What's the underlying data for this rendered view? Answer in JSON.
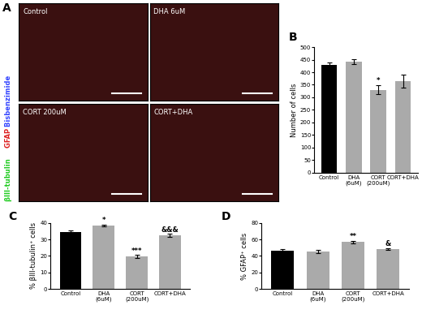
{
  "figure_a": {
    "label": "A",
    "panels": [
      "Control",
      "DHA 6uM",
      "CORT 200uM",
      "CORT+DHA"
    ],
    "stain_labels": [
      "βIII-tubulin",
      "GFAP",
      "Bisbenzimide"
    ]
  },
  "chart_data": [
    {
      "type": "bar",
      "panel": "B",
      "y_label": "Number of cells",
      "categories": [
        "Control",
        "DHA\n(6uM)",
        "CORT\n(200uM)",
        "CORT+DHA"
      ],
      "values": [
        428,
        443,
        330,
        365
      ],
      "errors": [
        10,
        10,
        18,
        25
      ],
      "annotations": [
        null,
        null,
        "*",
        null
      ],
      "colors": [
        "#000000",
        "#aaaaaa",
        "#aaaaaa",
        "#aaaaaa"
      ],
      "ylim": [
        0,
        500
      ],
      "yticks": [
        0,
        50,
        100,
        150,
        200,
        250,
        300,
        350,
        400,
        450,
        500
      ]
    },
    {
      "type": "bar",
      "panel": "C",
      "y_label": "% βIII-tubulin⁺ cells",
      "categories": [
        "Control",
        "DHA\n(6uM)",
        "CORT\n(200uM)",
        "CORT+DHA"
      ],
      "values": [
        34.5,
        38.5,
        19.5,
        32.5
      ],
      "errors": [
        1,
        0.5,
        1,
        0.8
      ],
      "annotations": [
        null,
        "*",
        "***",
        "&&&"
      ],
      "colors": [
        "#000000",
        "#aaaaaa",
        "#aaaaaa",
        "#aaaaaa"
      ],
      "ylim": [
        0,
        40
      ],
      "yticks": [
        0,
        10,
        20,
        30,
        40
      ]
    },
    {
      "type": "bar",
      "panel": "D",
      "y_label": "% GFAP⁺ cells",
      "categories": [
        "Control",
        "DHA\n(6uM)",
        "CORT\n(200uM)",
        "CORT+DHA"
      ],
      "values": [
        46,
        45.5,
        57,
        48.5
      ],
      "errors": [
        2,
        2,
        1.5,
        1.2
      ],
      "annotations": [
        null,
        null,
        "**",
        "&"
      ],
      "colors": [
        "#000000",
        "#aaaaaa",
        "#aaaaaa",
        "#aaaaaa"
      ],
      "ylim": [
        0,
        80
      ],
      "yticks": [
        0,
        20,
        40,
        60,
        80
      ]
    }
  ]
}
